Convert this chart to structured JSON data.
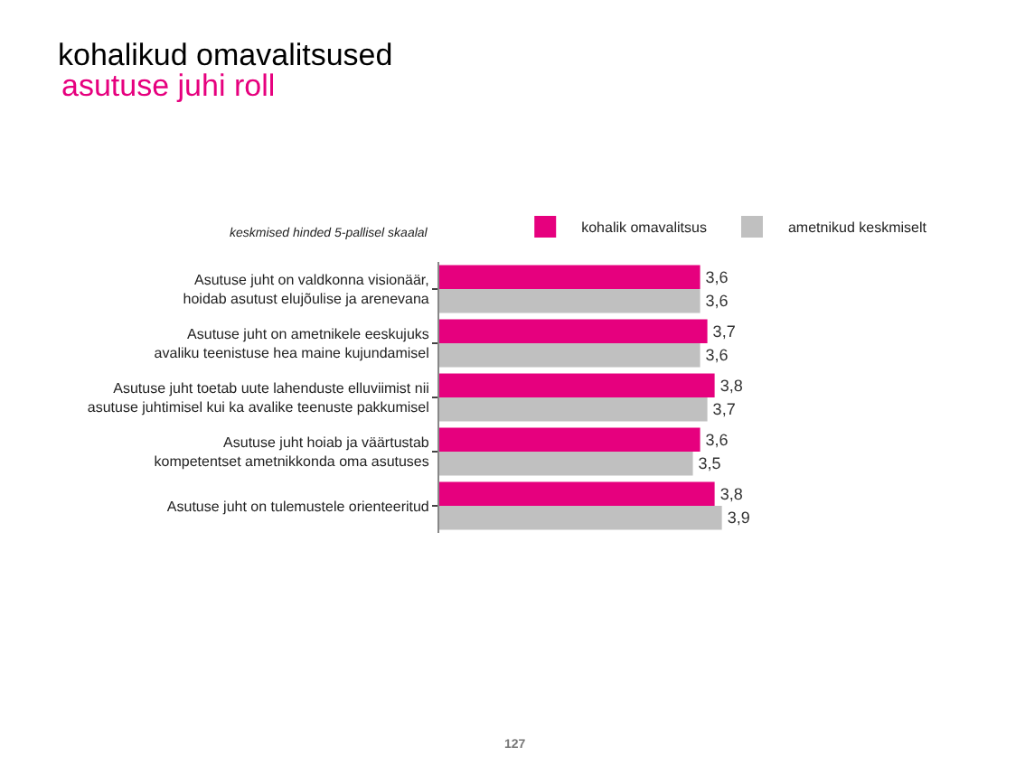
{
  "chart_data": {
    "type": "bar",
    "orientation": "horizontal",
    "title": "kohalikud omavalitsused",
    "subtitle": "asutuse juhi roll",
    "categories": [
      "Asutuse juht on valdkonna visionäär,\nhoidab asutust elujõulise ja arenevana",
      "Asutuse juht on ametnikele eeskujuks\navaliku teenistuse hea maine kujundamisel",
      "Asutuse juht toetab uute lahenduste elluviimist nii\nasutuse juhtimisel kui ka avalike teenuste pakkumisel",
      "Asutuse juht hoiab ja väärtustab\nkompetentset ametnikkonda oma asutuses",
      "Asutuse juht on tulemustele orienteeritud"
    ],
    "series": [
      {
        "name": "kohalik omavalitsus",
        "color": "#e6007e",
        "values": [
          3.6,
          3.7,
          3.8,
          3.6,
          3.8
        ],
        "value_labels": [
          "3,6",
          "3,7",
          "3,8",
          "3,6",
          "3,8"
        ]
      },
      {
        "name": "ametnikud keskmiselt",
        "color": "#c0c0c0",
        "values": [
          3.6,
          3.6,
          3.7,
          3.5,
          3.9
        ],
        "value_labels": [
          "3,6",
          "3,6",
          "3,7",
          "3,5",
          "3,9"
        ]
      }
    ],
    "annotations": [
      "keskmised hinded 5-pallisel skaalal",
      "127"
    ],
    "legend": "top"
  }
}
